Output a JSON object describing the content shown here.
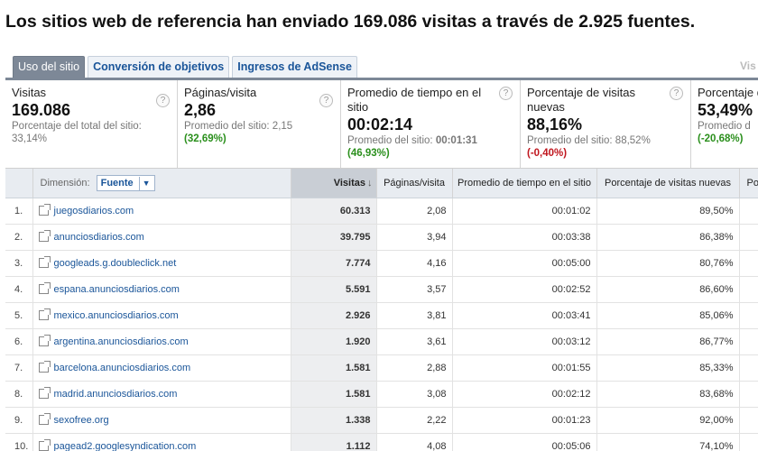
{
  "headline": "Los sitios web de referencia han enviado 169.086 visitas a través de 2.925 fuentes.",
  "tabs": [
    {
      "label": "Uso del sitio",
      "active": true
    },
    {
      "label": "Conversión de objetivos",
      "active": false
    },
    {
      "label": "Ingresos de AdSense",
      "active": false
    }
  ],
  "tabs_more": "Vis",
  "scorecards": [
    {
      "title": "Visitas",
      "value": "169.086",
      "sub_label": "Porcentaje del total del sitio:",
      "sub_value": "33,14%",
      "delta": "",
      "help": "?"
    },
    {
      "title": "Páginas/visita",
      "value": "2,86",
      "sub_label": "Promedio del sitio: 2,15",
      "sub_value": "",
      "delta": "(32,69%)",
      "help": "?"
    },
    {
      "title": "Promedio de tiempo en el sitio",
      "value": "00:02:14",
      "sub_label": "Promedio del sitio:",
      "sub_value": "00:01:31",
      "delta": "(46,93%)",
      "help": "?"
    },
    {
      "title": "Porcentaje de visitas nuevas",
      "value": "88,16%",
      "sub_label": "Promedio del sitio: 88,52%",
      "sub_value": "",
      "delta": "(-0,40%)",
      "help": "?"
    },
    {
      "title": "Porcentaje d",
      "value": "53,49%",
      "sub_label": "Promedio d",
      "sub_value": "",
      "delta": "(-20,68%)",
      "help": ""
    }
  ],
  "table": {
    "dimension_label": "Dimensión:",
    "dimension_value": "Fuente",
    "columns": {
      "visitas": "Visitas",
      "paginas": "Páginas/visita",
      "tiempo": "Promedio de tiempo en el sitio",
      "nuevas": "Porcentaje de visitas nuevas",
      "more": "Po"
    },
    "sort_arrow": "↓",
    "rows": [
      {
        "index": "1.",
        "source": "juegosdiarios.com",
        "visits": "60.313",
        "pages": "2,08",
        "time": "00:01:02",
        "new": "89,50%"
      },
      {
        "index": "2.",
        "source": "anunciosdiarios.com",
        "visits": "39.795",
        "pages": "3,94",
        "time": "00:03:38",
        "new": "86,38%"
      },
      {
        "index": "3.",
        "source": "googleads.g.doubleclick.net",
        "visits": "7.774",
        "pages": "4,16",
        "time": "00:05:00",
        "new": "80,76%"
      },
      {
        "index": "4.",
        "source": "espana.anunciosdiarios.com",
        "visits": "5.591",
        "pages": "3,57",
        "time": "00:02:52",
        "new": "86,60%"
      },
      {
        "index": "5.",
        "source": "mexico.anunciosdiarios.com",
        "visits": "2.926",
        "pages": "3,81",
        "time": "00:03:41",
        "new": "85,06%"
      },
      {
        "index": "6.",
        "source": "argentina.anunciosdiarios.com",
        "visits": "1.920",
        "pages": "3,61",
        "time": "00:03:12",
        "new": "86,77%"
      },
      {
        "index": "7.",
        "source": "barcelona.anunciosdiarios.com",
        "visits": "1.581",
        "pages": "2,88",
        "time": "00:01:55",
        "new": "85,33%"
      },
      {
        "index": "8.",
        "source": "madrid.anunciosdiarios.com",
        "visits": "1.581",
        "pages": "3,08",
        "time": "00:02:12",
        "new": "83,68%"
      },
      {
        "index": "9.",
        "source": "sexofree.org",
        "visits": "1.338",
        "pages": "2,22",
        "time": "00:01:23",
        "new": "92,00%"
      },
      {
        "index": "10.",
        "source": "pagead2.googlesyndication.com",
        "visits": "1.112",
        "pages": "4,08",
        "time": "00:05:06",
        "new": "74,10%"
      }
    ]
  },
  "colors": {
    "link": "#1a5599",
    "positive": "#2a8f1c",
    "negative": "#c0161e",
    "tab_active": "#7d8897"
  }
}
